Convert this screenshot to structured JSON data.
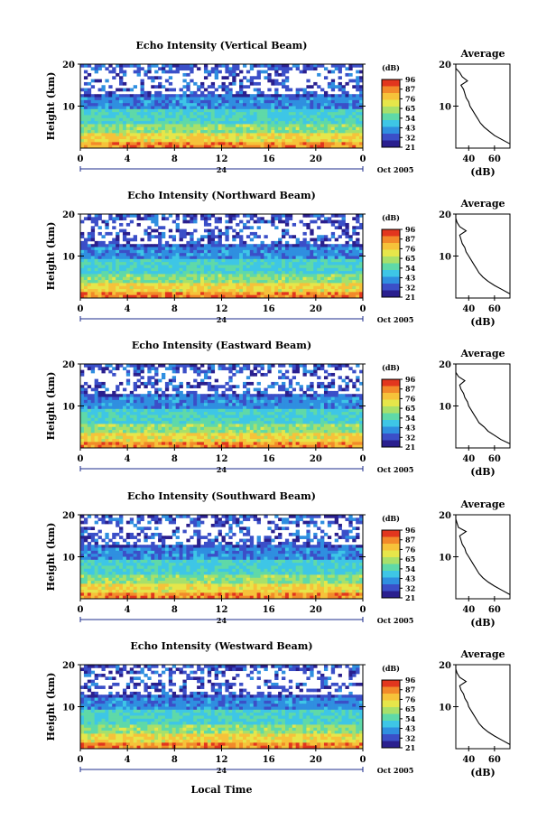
{
  "panels": [
    {
      "title": "Echo Intensity (Vertical Beam)",
      "avg_title": "Average",
      "avg_profile": {
        "height_km": [
          1,
          2,
          3,
          4,
          5,
          6,
          7,
          8,
          9,
          10,
          11,
          12,
          13,
          14,
          15,
          16,
          17,
          18,
          19,
          20
        ],
        "db": [
          72,
          66,
          60,
          56,
          52,
          49,
          47,
          45,
          43,
          41,
          40,
          38,
          37,
          36,
          34,
          39,
          35,
          33,
          30,
          29
        ]
      }
    },
    {
      "title": "Echo Intensity (Northward Beam)",
      "avg_title": "Average",
      "avg_profile": {
        "height_km": [
          1,
          2,
          3,
          4,
          5,
          6,
          7,
          8,
          9,
          10,
          11,
          12,
          13,
          14,
          15,
          16,
          17,
          18,
          19,
          20
        ],
        "db": [
          74,
          66,
          60,
          55,
          51,
          48,
          46,
          44,
          42,
          40,
          38,
          37,
          35,
          34,
          33,
          38,
          33,
          31,
          30,
          29
        ]
      }
    },
    {
      "title": "Echo Intensity (Eastward Beam)",
      "avg_title": "Average",
      "avg_profile": {
        "height_km": [
          1,
          2,
          3,
          4,
          5,
          6,
          7,
          8,
          9,
          10,
          11,
          12,
          13,
          14,
          15,
          16,
          17,
          18,
          19,
          20
        ],
        "db": [
          73,
          65,
          60,
          55,
          52,
          48,
          46,
          44,
          42,
          40,
          39,
          37,
          36,
          34,
          33,
          37,
          32,
          30,
          29,
          28
        ]
      }
    },
    {
      "title": "Echo Intensity (Southward Beam)",
      "avg_title": "Average",
      "avg_profile": {
        "height_km": [
          1,
          2,
          3,
          4,
          5,
          6,
          7,
          8,
          9,
          10,
          11,
          12,
          13,
          14,
          15,
          16,
          17,
          18,
          19,
          20
        ],
        "db": [
          74,
          66,
          60,
          55,
          51,
          48,
          46,
          44,
          42,
          40,
          38,
          37,
          35,
          34,
          33,
          38,
          32,
          31,
          29,
          28
        ]
      }
    },
    {
      "title": "Echo Intensity (Westward Beam)",
      "avg_title": "Average",
      "avg_profile": {
        "height_km": [
          1,
          2,
          3,
          4,
          5,
          6,
          7,
          8,
          9,
          10,
          11,
          12,
          13,
          14,
          15,
          16,
          17,
          18,
          19,
          20
        ],
        "db": [
          73,
          66,
          60,
          55,
          51,
          48,
          46,
          44,
          42,
          40,
          39,
          37,
          36,
          34,
          33,
          38,
          33,
          31,
          30,
          29
        ]
      }
    }
  ],
  "y_label": "Height (km)",
  "y_ticks": [
    "20",
    "10"
  ],
  "x_ticks": [
    "0",
    "4",
    "8",
    "12",
    "16",
    "20",
    "0"
  ],
  "date_mark": "24",
  "date_label": "Oct 2005",
  "x_label": "Local Time",
  "colorbar": {
    "unit": "(dB)",
    "labels": [
      "96",
      "87",
      "76",
      "65",
      "54",
      "43",
      "32",
      "21"
    ],
    "colors": [
      "#2a1f8e",
      "#3b4fc8",
      "#2f8fe0",
      "#3ec6e6",
      "#5fd9a8",
      "#a8e06a",
      "#e6e64a",
      "#f6c23a",
      "#f28a2a",
      "#e2361e"
    ]
  },
  "avg_x_ticks": [
    "40",
    "60"
  ],
  "avg_x_label": "(dB)",
  "chart_data": [
    {
      "type": "heatmap",
      "title": "Echo Intensity (Vertical Beam)",
      "ylabel": "Height (km)",
      "xlabel": "Local Time",
      "ylim": [
        0,
        20
      ],
      "xlim": [
        0,
        24
      ],
      "zlim": [
        21,
        96
      ]
    },
    {
      "type": "heatmap",
      "title": "Echo Intensity (Northward Beam)",
      "ylabel": "Height (km)",
      "xlabel": "Local Time",
      "ylim": [
        0,
        20
      ],
      "xlim": [
        0,
        24
      ],
      "zlim": [
        21,
        96
      ]
    },
    {
      "type": "heatmap",
      "title": "Echo Intensity (Eastward Beam)",
      "ylabel": "Height (km)",
      "xlabel": "Local Time",
      "ylim": [
        0,
        20
      ],
      "xlim": [
        0,
        24
      ],
      "zlim": [
        21,
        96
      ]
    },
    {
      "type": "heatmap",
      "title": "Echo Intensity (Southward Beam)",
      "ylabel": "Height (km)",
      "xlabel": "Local Time",
      "ylim": [
        0,
        20
      ],
      "xlim": [
        0,
        24
      ],
      "zlim": [
        21,
        96
      ]
    },
    {
      "type": "heatmap",
      "title": "Echo Intensity (Westward Beam)",
      "ylabel": "Height (km)",
      "xlabel": "Local Time",
      "ylim": [
        0,
        20
      ],
      "xlim": [
        0,
        24
      ],
      "zlim": [
        21,
        96
      ]
    }
  ]
}
